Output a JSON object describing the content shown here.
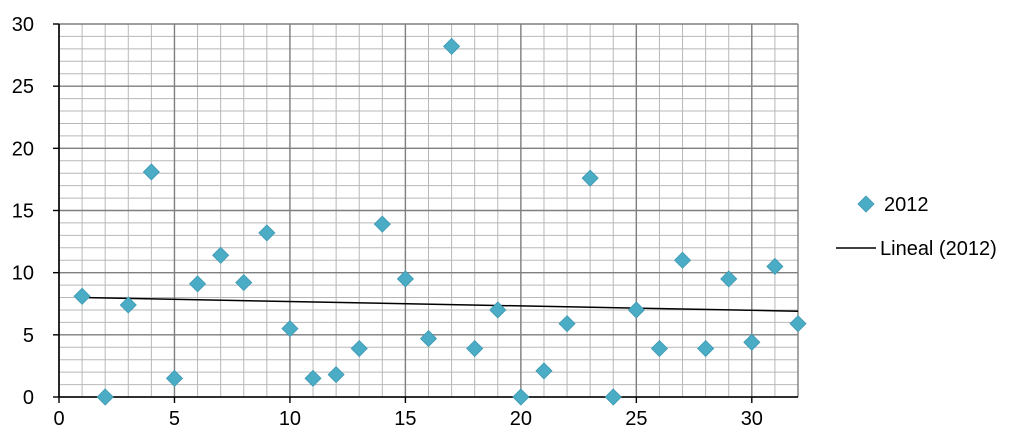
{
  "chart_data": {
    "type": "scatter",
    "title": "",
    "xlabel": "",
    "ylabel": "",
    "xlim": [
      0,
      32
    ],
    "ylim": [
      0,
      30
    ],
    "x_ticks": [
      0,
      5,
      10,
      15,
      20,
      25,
      30
    ],
    "y_ticks": [
      0,
      5,
      10,
      15,
      20,
      25,
      30
    ],
    "grid": "on (major and minor)",
    "legend_position": "right",
    "series": [
      {
        "name": "2012",
        "marker": "diamond",
        "color": "#4bacc6",
        "points": [
          [
            1,
            8.1
          ],
          [
            2,
            0
          ],
          [
            3,
            7.4
          ],
          [
            4,
            18.1
          ],
          [
            5,
            1.5
          ],
          [
            6,
            9.1
          ],
          [
            7,
            11.4
          ],
          [
            8,
            9.2
          ],
          [
            9,
            13.2
          ],
          [
            10,
            5.5
          ],
          [
            11,
            1.5
          ],
          [
            12,
            1.8
          ],
          [
            13,
            3.9
          ],
          [
            14,
            13.9
          ],
          [
            15,
            9.5
          ],
          [
            16,
            4.7
          ],
          [
            17,
            28.2
          ],
          [
            18,
            3.9
          ],
          [
            19,
            7.0
          ],
          [
            20,
            0
          ],
          [
            21,
            2.1
          ],
          [
            22,
            5.9
          ],
          [
            23,
            17.6
          ],
          [
            24,
            0
          ],
          [
            25,
            7.0
          ],
          [
            26,
            3.9
          ],
          [
            27,
            11.0
          ],
          [
            28,
            3.9
          ],
          [
            29,
            9.5
          ],
          [
            30,
            4.4
          ],
          [
            31,
            10.5
          ],
          [
            32,
            5.9
          ]
        ]
      }
    ],
    "trendline": {
      "name": "Lineal (2012)",
      "type": "linear",
      "color": "#000000",
      "from": [
        1,
        8.0
      ],
      "to": [
        32,
        6.9
      ]
    }
  },
  "legend": {
    "series_label": "2012",
    "trend_label": "Lineal (2012)"
  }
}
